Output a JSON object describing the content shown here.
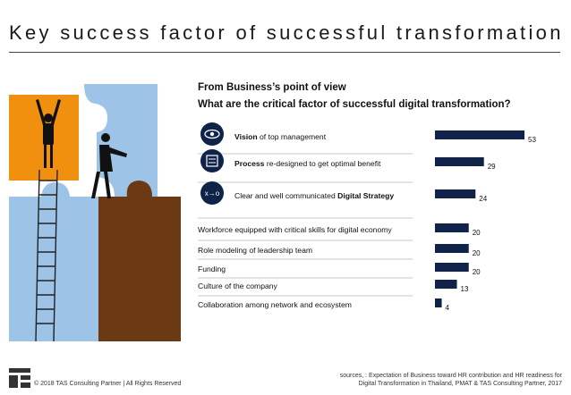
{
  "page": {
    "title": "Key success factor of successful transformation",
    "section_heading": "From Business’s point of view",
    "question": "What are the critical factor of successful digital transformation?",
    "copyright": "© 2018 TAS Consulting Partner  |  All Rights Reserved",
    "source_line1": "sources, : Expectation of Business toward HR contribution and HR readiness for",
    "source_line2": "Digital Transformation in Thailand, PMAT & TAS Consulting Partner, 2017"
  },
  "icons": [
    "eye-icon",
    "process-icon",
    "strategy-icon",
    "puzzle-illustration-icon",
    "company-logo-icon"
  ],
  "colors": {
    "bar": "#0f2247",
    "orange": "#f0900e",
    "blue": "#9dc3e6",
    "brown": "#6b3a14",
    "icon_circle": "#0f2247"
  },
  "chart_data": {
    "type": "bar",
    "orientation": "horizontal",
    "title": "What are the critical factor of successful digital transformation?",
    "categories": [
      {
        "plain": "",
        "bold": "Vision",
        "rest": " of top management"
      },
      {
        "plain": "",
        "bold": "Process",
        "rest": " re-designed to get optimal benefit"
      },
      {
        "plain": "Clear and well communicated ",
        "bold": "Digital Strategy",
        "rest": ""
      },
      {
        "plain": "Workforce equipped with critical skills for digital economy",
        "bold": "",
        "rest": ""
      },
      {
        "plain": "Role modeling of leadership team",
        "bold": "",
        "rest": ""
      },
      {
        "plain": "Funding",
        "bold": "",
        "rest": ""
      },
      {
        "plain": "Culture of the company",
        "bold": "",
        "rest": ""
      },
      {
        "plain": "Collaboration among network and ecosystem",
        "bold": "",
        "rest": ""
      }
    ],
    "values": [
      53,
      29,
      24,
      20,
      20,
      20,
      13,
      4
    ],
    "value_labels": [
      "53",
      "29",
      "24",
      "20",
      "20",
      "20",
      "13",
      "4"
    ],
    "xlim": [
      0,
      53
    ],
    "grid": false,
    "legend": "none"
  }
}
